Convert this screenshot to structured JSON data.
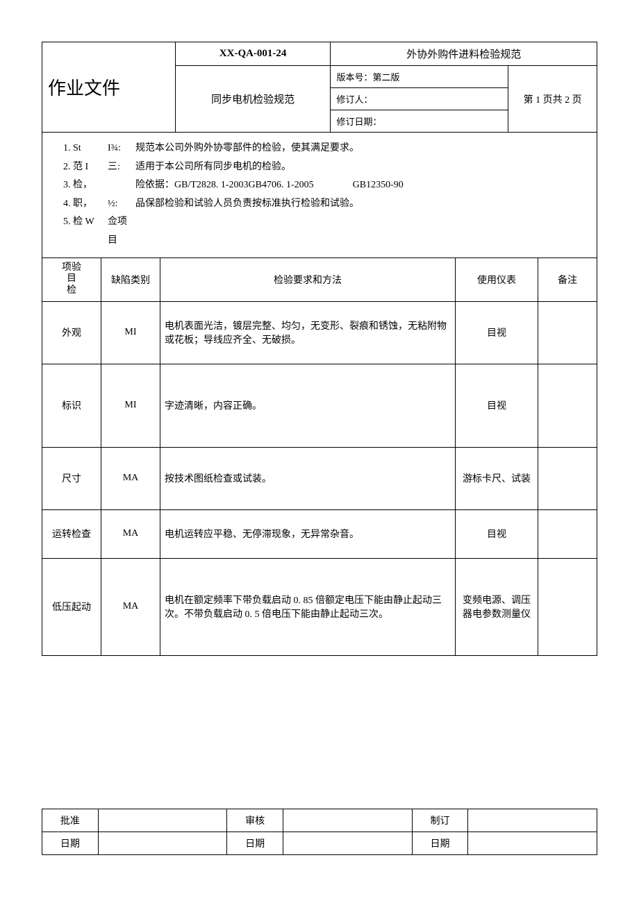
{
  "header": {
    "doc_type": "作业文件",
    "doc_code": "XX-QA-001-24",
    "doc_category": "外协外购件进料检验规范",
    "doc_title": "同步电机检验规范",
    "version_label": "版本号：第二版",
    "reviser_label": "修订人：",
    "revise_date_label": "修订日期：",
    "page_info": "第 1 页共 2 页"
  },
  "intro": {
    "items": [
      {
        "label": "1. St",
        "sep": "I¾:",
        "content": "规范本公司外购外协零部件的检验，使其满足要求。"
      },
      {
        "label": "2. 范 I",
        "sep": "三:",
        "content": "适用于本公司所有同步电机的检验。"
      },
      {
        "label": "3. 检，",
        "sep": "",
        "content": "险依据：GB/T2828. 1-2003GB4706. 1-2005　　　　GB12350-90"
      },
      {
        "label": "4. 职，",
        "sep": "½:",
        "content": "品保部检验和试验人员负责按标准执行检验和试验。"
      },
      {
        "label": "5. 检 W",
        "sep": "佥项目",
        "content": ""
      }
    ]
  },
  "table": {
    "headers": {
      "item": "项验\n目\n检",
      "defect": "缺陷类别",
      "method": "检验要求和方法",
      "instrument": "使用仪表",
      "remark": "备注"
    },
    "rows": [
      {
        "item": "外观",
        "defect": "MI",
        "method": "电机表面光洁，镀层完整、均匀，无变形、裂痕和锈蚀，无粘附物或花板；导线应齐全、无破损。",
        "instrument": "目视",
        "remark": "",
        "height_class": "row-tall-1"
      },
      {
        "item": "标识",
        "defect": "MI",
        "method": "字迹清晰，内容正确。",
        "instrument": "目视",
        "remark": "",
        "height_class": "row-tall-2"
      },
      {
        "item": "尺寸",
        "defect": "MA",
        "method": "按技术图纸检查或试装。",
        "instrument": "游标卡尺、试装",
        "remark": "",
        "height_class": "row-tall-1"
      },
      {
        "item": "运转检查",
        "defect": "MA",
        "method": "电机运转应平稳、无停滞现象，无异常杂音。",
        "instrument": "目视",
        "remark": "",
        "height_class": "row-medium"
      },
      {
        "item": "低压起动",
        "defect": "MA",
        "method": "电机在额定频率下带负载启动 0. 85 倍额定电压下能由静止起动三次。不带负载启动 0. 5 倍电压下能由静止起动三次。",
        "instrument": "变频电源、调压器电参数测量仪",
        "remark": "",
        "height_class": "row-tall-3"
      }
    ]
  },
  "footer": {
    "row1": [
      {
        "label": "批准",
        "value": ""
      },
      {
        "label": "审核",
        "value": ""
      },
      {
        "label": "制订",
        "value": ""
      }
    ],
    "row2": [
      {
        "label": "日期",
        "value": ""
      },
      {
        "label": "日期",
        "value": ""
      },
      {
        "label": "日期",
        "value": ""
      }
    ]
  },
  "colors": {
    "border": "#000000",
    "background": "#ffffff",
    "text": "#000000"
  }
}
